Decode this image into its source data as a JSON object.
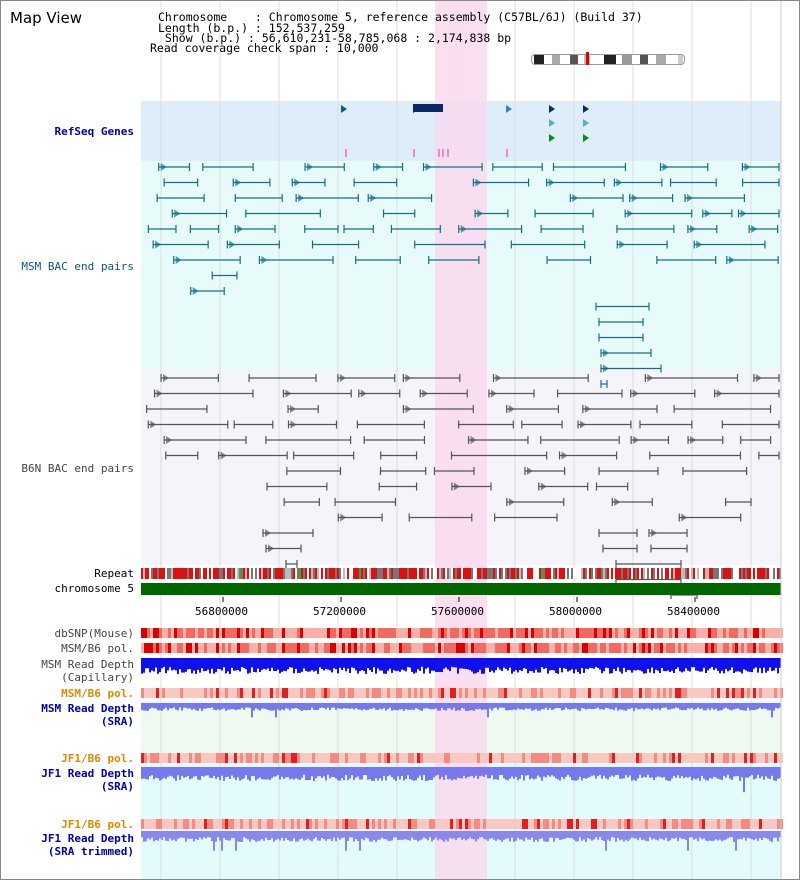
{
  "title": "Map View",
  "info": {
    "chromosome": "Chromosome    : Chromosome 5, reference assembly (C57BL/6J) (Build 37)",
    "length": "Length (b.p.) : 152,537,259",
    "show": " Show (b.p.) : 56,610,231-58,785,068 : 2,174,838 bp",
    "read_coverage": "Read coverage check span : 10,000"
  },
  "tracks": {
    "refseq": "RefSeq Genes",
    "msm_bac": "MSM BAC end pairs",
    "b6n_bac": "B6N BAC end pairs",
    "repeat": "Repeat",
    "chromosome": "chromosome 5",
    "dbsnp": "dbSNP(Mouse)",
    "msm_b6_pol_1": "MSM/B6 pol.",
    "msm_depth_cap_1": "MSM Read Depth",
    "msm_depth_cap_2": "(Capillary)",
    "msm_b6_pol_2": "MSM/B6 pol.",
    "msm_depth_sra_1": "MSM Read Depth",
    "msm_depth_sra_2": "(SRA)",
    "jf1_b6_pol_1": "JF1/B6 pol.",
    "jf1_depth_sra_1": "JF1 Read Depth",
    "jf1_depth_sra_2": "(SRA)",
    "jf1_b6_pol_2": "JF1/B6 pol.",
    "jf1_depth_trim_1": "JF1 Read Depth",
    "jf1_depth_trim_2": "(SRA trimmed)"
  },
  "axis": {
    "ticks": [
      "56800000",
      "57200000",
      "57600000",
      "58000000",
      "58400000"
    ]
  },
  "colors": {
    "refseq_bg": "#ddeefa",
    "msm_bg": "#e8fbfb",
    "b6n_bg": "#f4f4fa",
    "highlight": "#f9d9ef",
    "chromosome_bar": "#006600",
    "msm_depth_cap": "#1010ee",
    "sra_depth": "#7777ee",
    "teal": "#156f84",
    "gray": "#555555",
    "gene_dark": "#0a2a66"
  }
}
